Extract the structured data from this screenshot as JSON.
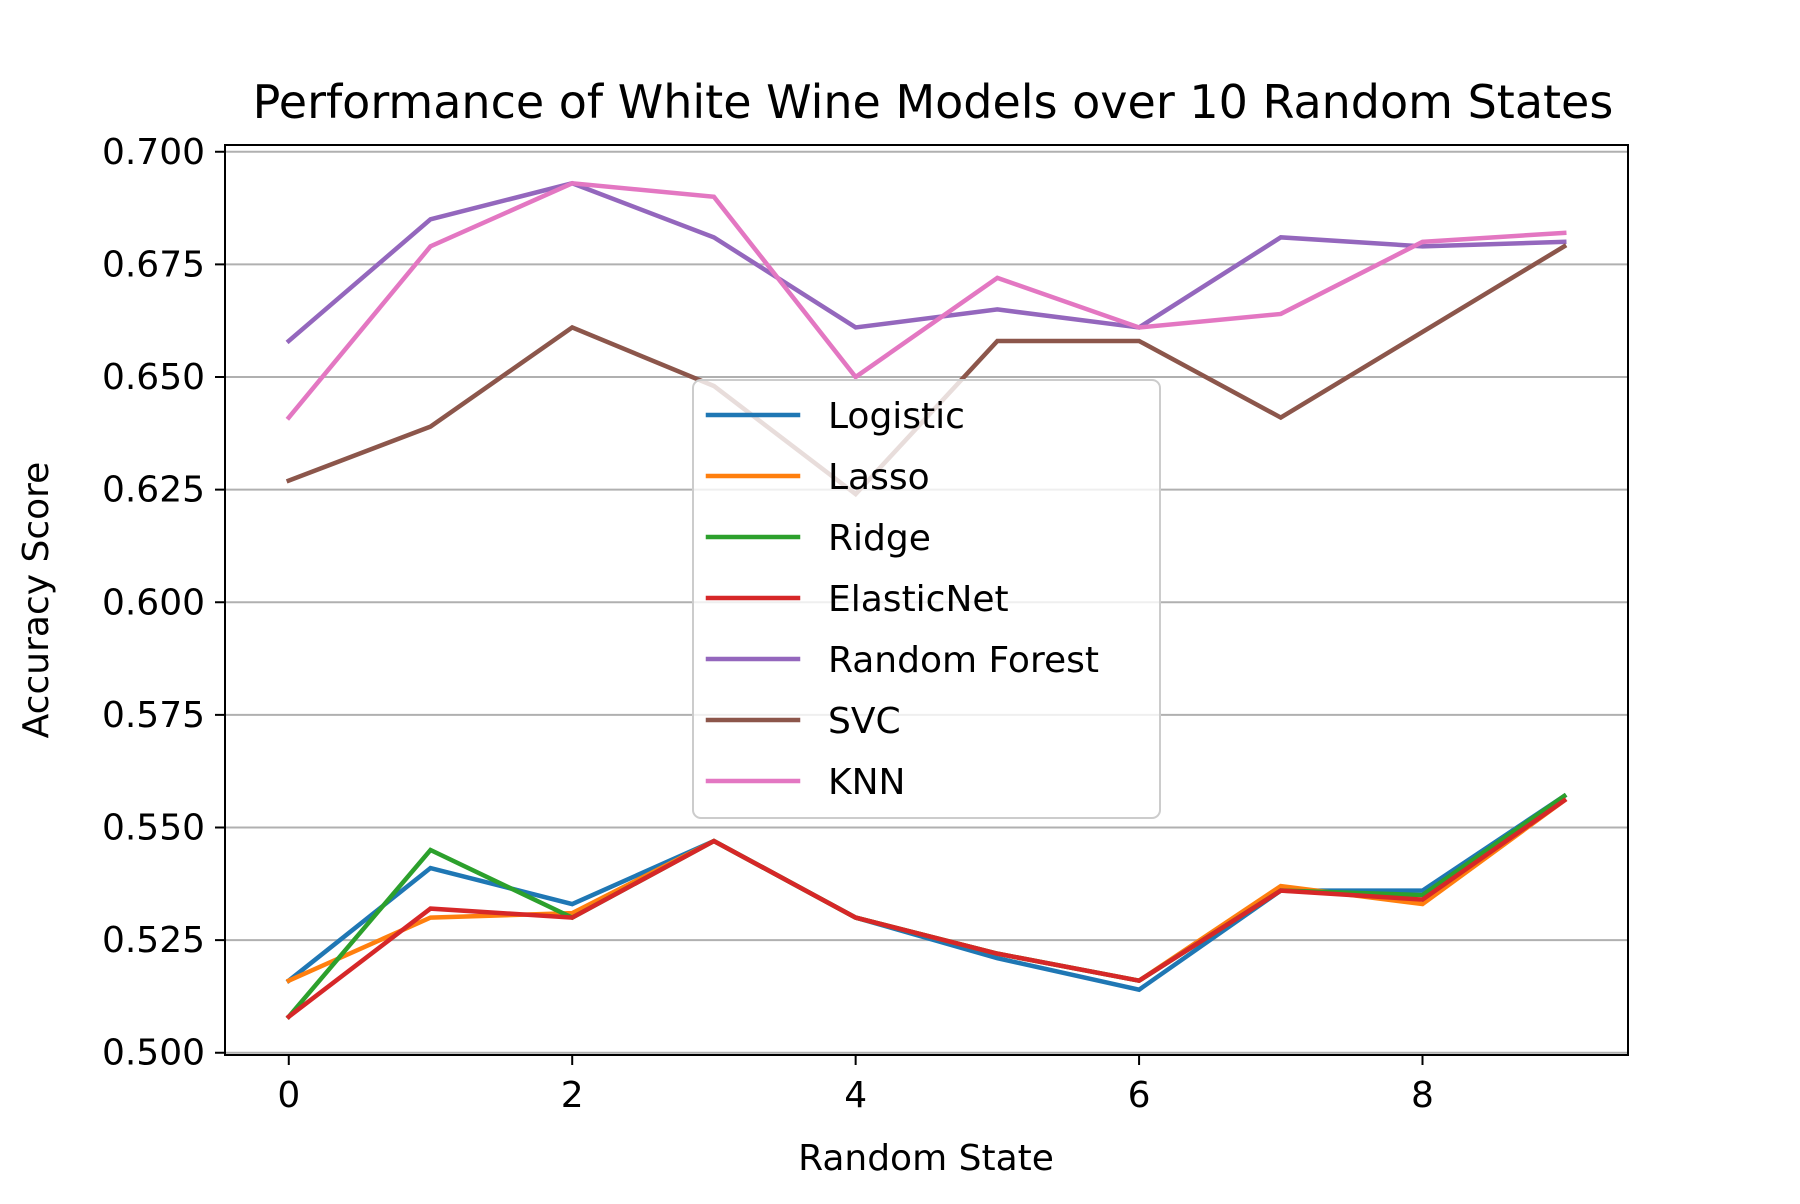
{
  "chart_data": {
    "type": "line",
    "title": "Performance of White Wine Models over 10 Random States",
    "xlabel": "Random State",
    "ylabel": "Accuracy Score",
    "x": [
      0,
      1,
      2,
      3,
      4,
      5,
      6,
      7,
      8,
      9
    ],
    "xlim": [
      -0.45,
      9.45
    ],
    "ylim": [
      0.4995,
      0.7015
    ],
    "x_ticks": [
      0,
      2,
      4,
      6,
      8
    ],
    "x_tick_labels": [
      "0",
      "2",
      "4",
      "6",
      "8"
    ],
    "y_ticks": [
      0.5,
      0.525,
      0.55,
      0.575,
      0.6,
      0.625,
      0.65,
      0.675,
      0.7
    ],
    "y_tick_labels": [
      "0.500",
      "0.525",
      "0.550",
      "0.575",
      "0.600",
      "0.625",
      "0.650",
      "0.675",
      "0.700"
    ],
    "grid": "horizontal",
    "legend_position": "center",
    "series": [
      {
        "name": "Logistic",
        "color": "#1f77b4",
        "values": [
          0.516,
          0.541,
          0.533,
          0.547,
          0.53,
          0.521,
          0.514,
          0.536,
          0.536,
          0.557
        ]
      },
      {
        "name": "Lasso",
        "color": "#ff7f0e",
        "values": [
          0.516,
          0.53,
          0.531,
          0.547,
          0.53,
          0.522,
          0.516,
          0.537,
          0.533,
          0.556
        ]
      },
      {
        "name": "Ridge",
        "color": "#2ca02c",
        "values": [
          0.508,
          0.545,
          0.53,
          0.547,
          0.53,
          0.522,
          0.516,
          0.536,
          0.535,
          0.557
        ]
      },
      {
        "name": "ElasticNet",
        "color": "#d62728",
        "values": [
          0.508,
          0.532,
          0.53,
          0.547,
          0.53,
          0.522,
          0.516,
          0.536,
          0.534,
          0.556
        ]
      },
      {
        "name": "Random Forest",
        "color": "#9467bd",
        "values": [
          0.658,
          0.685,
          0.693,
          0.681,
          0.661,
          0.665,
          0.661,
          0.681,
          0.679,
          0.68
        ]
      },
      {
        "name": "SVC",
        "color": "#8c564b",
        "values": [
          0.627,
          0.639,
          0.661,
          0.648,
          0.624,
          0.658,
          0.658,
          0.641,
          0.66,
          0.679
        ]
      },
      {
        "name": "KNN",
        "color": "#e377c2",
        "values": [
          0.641,
          0.679,
          0.693,
          0.69,
          0.65,
          0.672,
          0.661,
          0.664,
          0.68,
          0.682
        ]
      }
    ]
  }
}
